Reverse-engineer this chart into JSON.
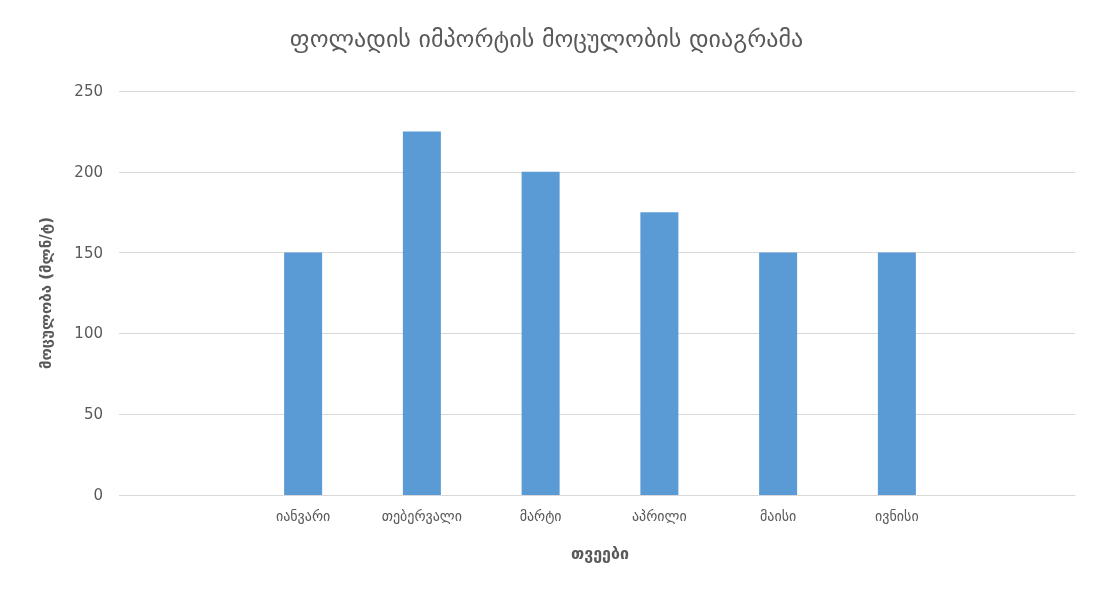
{
  "chart_data": {
    "type": "bar",
    "title": "ფოლადის იმპორტის მოცულობის დიაგრამა",
    "xlabel": "თვეები",
    "ylabel": "მოცულობა (მლნ/ტ)",
    "categories": [
      null,
      "იანვარი",
      "თებერვალი",
      "მარტი",
      "აპრილი",
      "მაისი",
      "ივნისი",
      null
    ],
    "values": [
      null,
      150,
      225,
      200,
      175,
      150,
      150,
      null
    ],
    "color": "#5b9bd5",
    "ylim": [
      0,
      250
    ],
    "yticks": [
      0,
      50,
      100,
      150,
      200,
      250
    ],
    "grid": "y"
  }
}
